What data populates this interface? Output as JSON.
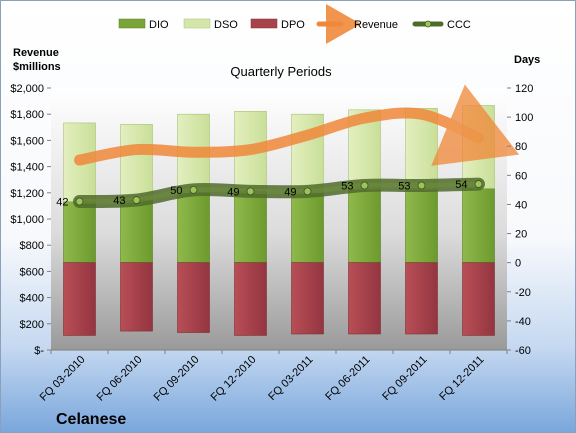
{
  "company": "Celanese",
  "colors": {
    "dio": "#7aa33a",
    "dso": "#d4e6a9",
    "dpo": "#a8434b",
    "revenue": "#f0883a",
    "ccc": "#4f6b2a"
  },
  "chart_data": {
    "type": "bar",
    "title": "Quarterly Periods",
    "left_axis_label": [
      "Revenue",
      "$millions"
    ],
    "right_axis_label": "Days",
    "left_axis": {
      "range": [
        0,
        2000
      ],
      "ticks": [
        "$-",
        "$200",
        "$400",
        "$600",
        "$800",
        "$1,000",
        "$1,200",
        "$1,400",
        "$1,600",
        "$1,800",
        "$2,000"
      ]
    },
    "right_axis": {
      "range": [
        -60,
        120
      ],
      "ticks": [
        "-60",
        "-40",
        "-20",
        "0",
        "20",
        "40",
        "60",
        "80",
        "100",
        "120"
      ]
    },
    "categories": [
      "FQ 03-2010",
      "FQ 06-2010",
      "FQ 09-2010",
      "FQ 12-2010",
      "FQ 03-2011",
      "FQ 06-2011",
      "FQ 09-2011",
      "FQ 12-2011"
    ],
    "legend": [
      "DIO",
      "DSO",
      "DPO",
      "Revenue",
      "CCC"
    ],
    "series": [
      {
        "name": "DIO",
        "axis": "right",
        "values": [
          42,
          43,
          48,
          49,
          48,
          50,
          50,
          51
        ]
      },
      {
        "name": "DSO",
        "axis": "right",
        "values": [
          54,
          52,
          54,
          55,
          54,
          55,
          56,
          57
        ]
      },
      {
        "name": "DPO",
        "axis": "right",
        "values": [
          -50,
          -47,
          -48,
          -50,
          -49,
          -49,
          -49,
          -50
        ]
      },
      {
        "name": "Revenue",
        "axis": "left",
        "values": [
          1450,
          1530,
          1510,
          1530,
          1640,
          1770,
          1800,
          1620
        ]
      },
      {
        "name": "CCC",
        "axis": "right",
        "values": [
          42,
          43,
          50,
          49,
          49,
          53,
          53,
          54
        ]
      }
    ],
    "ccc_labels": [
      "42",
      "43",
      "50",
      "49",
      "49",
      "53",
      "53",
      "54"
    ],
    "grid": false,
    "legend_position": "top"
  }
}
